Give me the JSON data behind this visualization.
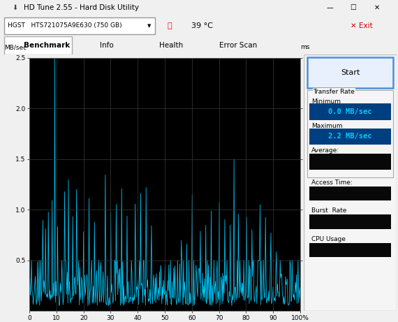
{
  "title": "HD Tune 2.55 - Hard Disk Utility",
  "drive": "HGST   HTS721075A9E630 (750 GB)",
  "temp": "39 °C",
  "ylabel_left": "MB/sec",
  "ylabel_right": "ms",
  "ylim_left": [
    0,
    2.5
  ],
  "ylim_right": [
    0,
    50
  ],
  "xlim": [
    0,
    100
  ],
  "yticks_left": [
    0.5,
    1.0,
    1.5,
    2.0,
    2.5
  ],
  "yticks_right": [
    10,
    20,
    30,
    40,
    50
  ],
  "xticks": [
    0,
    10,
    20,
    30,
    40,
    50,
    60,
    70,
    80,
    90,
    100
  ],
  "xtick_labels": [
    "0",
    "10",
    "20",
    "30",
    "40",
    "50",
    "60",
    "70",
    "80",
    "90",
    "100%"
  ],
  "line_color": "#00CCFF",
  "bg_color": "#000000",
  "outer_bg": "#f0f0f0",
  "grid_color": "#3a3a3a",
  "transfer_rate_min": "0.0 MB/sec",
  "transfer_rate_max": "2.2 MB/sec",
  "tabs": [
    "Benchmark",
    "Info",
    "Health",
    "Error Scan"
  ],
  "win_titlebar_color": "#e8e8e8",
  "win_toolbar_color": "#f0f0f0",
  "info_panel_color": "#f5f5f5",
  "cyan_box_color": "#003f7f",
  "cyan_text_color": "#00CCFF",
  "label_color_cyan": "#00CCFF",
  "black_box_color": "#080808",
  "start_btn_border": "#4a90d9",
  "start_btn_fill": "#e8f0fe"
}
